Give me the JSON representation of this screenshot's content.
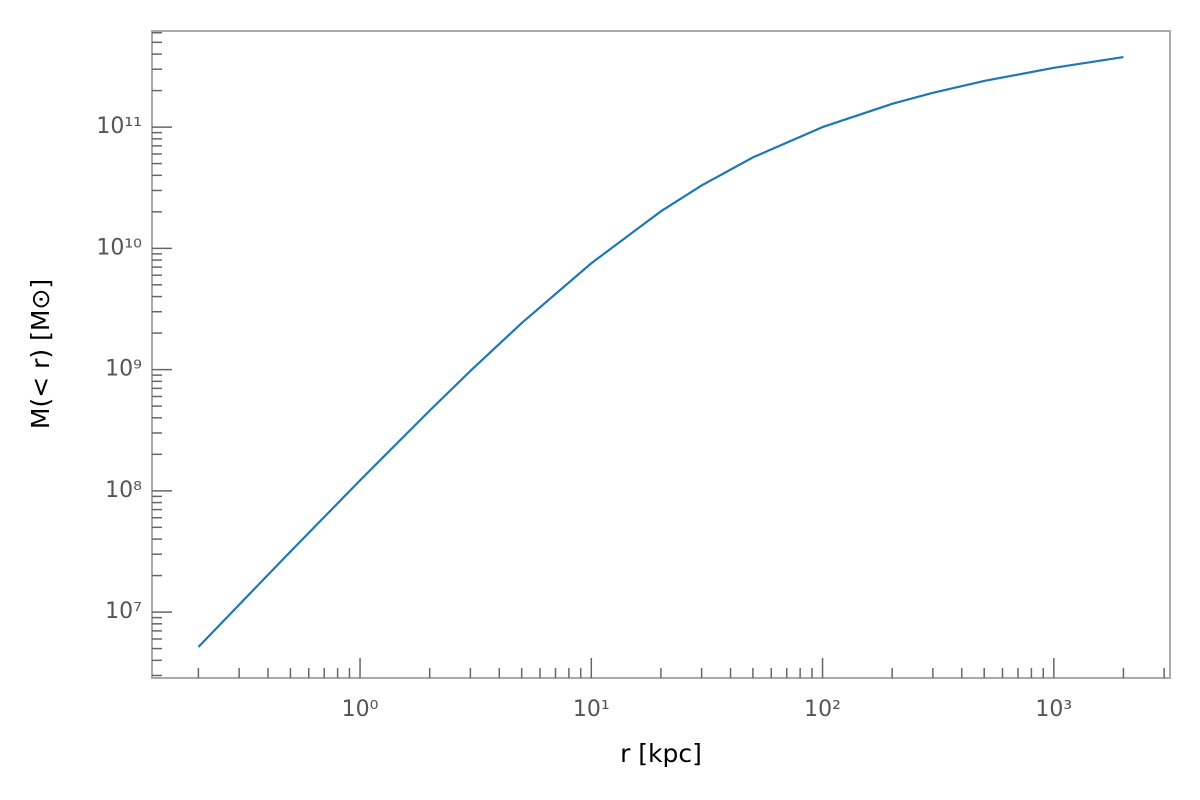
{
  "chart_data": {
    "type": "line",
    "x_label": "r [kpc]",
    "y_label": "M(< r) [M⊙]",
    "x": [
      0.2,
      0.3,
      0.5,
      1,
      2,
      3,
      5,
      10,
      20,
      30,
      50,
      100,
      200,
      300,
      500,
      1000,
      2000
    ],
    "series": [
      {
        "name": "M(< r)",
        "color": "#1f77b4",
        "values": [
          5150000,
          11500000,
          31500000,
          122000000,
          459000000,
          974000000,
          2420000000,
          7530000000,
          20200000000,
          33000000000,
          56200000000,
          100000000000,
          155400000000,
          191600000000,
          240000000000,
          308000000000,
          378000000000
        ]
      }
    ],
    "xlog": true,
    "ylog": true,
    "xlim": [
      0.126,
      3180
    ],
    "ylim": [
      2860000,
      620000000000
    ],
    "xticks": [
      {
        "value": 1,
        "label": "10⁰"
      },
      {
        "value": 10,
        "label": "10¹"
      },
      {
        "value": 100,
        "label": "10²"
      },
      {
        "value": 1000,
        "label": "10³"
      }
    ],
    "yticks": [
      {
        "value": 10000000,
        "label": "10⁷"
      },
      {
        "value": 100000000,
        "label": "10⁸"
      },
      {
        "value": 1000000000,
        "label": "10⁹"
      },
      {
        "value": 10000000000,
        "label": "10¹⁰"
      },
      {
        "value": 100000000000,
        "label": "10¹¹"
      }
    ],
    "minor_ticks": true,
    "grid": false
  }
}
